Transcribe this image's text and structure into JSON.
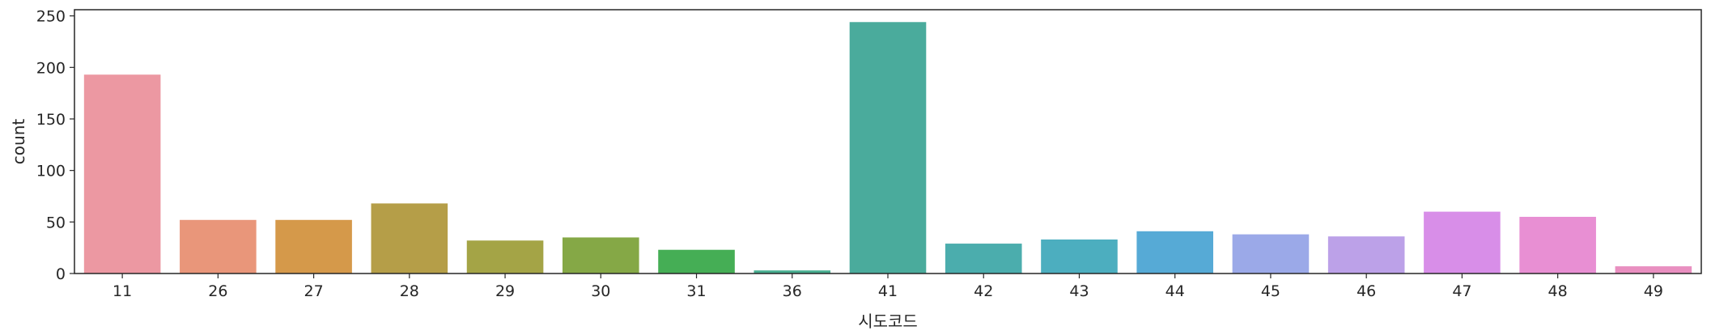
{
  "chart_data": {
    "type": "bar",
    "title": "",
    "xlabel": "시도코드",
    "ylabel": "count",
    "categories": [
      "11",
      "26",
      "27",
      "28",
      "29",
      "30",
      "31",
      "36",
      "41",
      "42",
      "43",
      "44",
      "45",
      "46",
      "47",
      "48",
      "49"
    ],
    "values": [
      193,
      52,
      52,
      68,
      32,
      35,
      23,
      3,
      244,
      29,
      33,
      41,
      38,
      36,
      60,
      55,
      7
    ],
    "colors": [
      "#ec98a2",
      "#e9967a",
      "#d5994a",
      "#b59e48",
      "#a4a446",
      "#85a846",
      "#45ae55",
      "#48ae90",
      "#4aab9c",
      "#4badad",
      "#4caebf",
      "#56aad6",
      "#9ba9e8",
      "#bca1e8",
      "#d88ee8",
      "#e88fd3",
      "#e98fc0"
    ],
    "yticks": [
      0,
      50,
      100,
      150,
      200,
      250
    ],
    "ylim": [
      0,
      256
    ],
    "grid": false,
    "legend": "none"
  }
}
